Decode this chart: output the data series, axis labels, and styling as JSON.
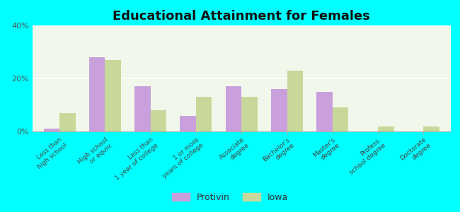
{
  "title": "Educational Attainment for Females",
  "categories": [
    "Less than\nhigh school",
    "High school\nor equiv.",
    "Less than\n1 year of college",
    "1 or more\nyears of college",
    "Associate\ndegree",
    "Bachelor's\ndegree",
    "Master's\ndegree",
    "Profess.\nschool degree",
    "Doctorate\ndegree"
  ],
  "protivin": [
    1,
    28,
    17,
    6,
    17,
    16,
    15,
    0,
    0
  ],
  "iowa": [
    7,
    27,
    8,
    13,
    13,
    23,
    9,
    2,
    2
  ],
  "protivin_color": "#c9a0dc",
  "iowa_color": "#c8d89a",
  "background_color": "#00ffff",
  "plot_bg": "#f2f7eb",
  "ylim": [
    0,
    40
  ],
  "yticks": [
    0,
    20,
    40
  ],
  "ytick_labels": [
    "0%",
    "20%",
    "40%"
  ],
  "bar_width": 0.35,
  "legend_labels": [
    "Protivin",
    "Iowa"
  ]
}
